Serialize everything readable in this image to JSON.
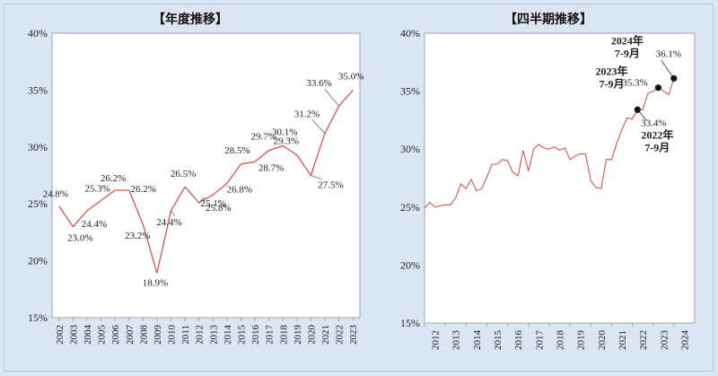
{
  "chart_data": [
    {
      "type": "line",
      "title": "【年度推移】",
      "xlabel": "",
      "ylabel": "",
      "ylim": [
        15,
        40
      ],
      "yticks": [
        "15%",
        "20%",
        "25%",
        "30%",
        "35%",
        "40%"
      ],
      "grid": false,
      "categories": [
        "2002",
        "2003",
        "2004",
        "2005",
        "2006",
        "2007",
        "2008",
        "2009",
        "2010",
        "2011",
        "2012",
        "2013",
        "2014",
        "2015",
        "2016",
        "2017",
        "2018",
        "2019",
        "2020",
        "2021",
        "2022",
        "2023"
      ],
      "series": [
        {
          "values": [
            24.8,
            23.0,
            24.4,
            25.3,
            26.2,
            26.2,
            23.2,
            18.9,
            24.4,
            26.5,
            25.1,
            25.8,
            26.8,
            28.5,
            28.7,
            29.7,
            30.1,
            29.3,
            27.5,
            31.2,
            33.6,
            35.0
          ],
          "color": "#d9534f"
        }
      ],
      "data_labels": [
        "24.8%",
        "23.0%",
        "24.4%",
        "25.3%",
        "26.2%",
        "26.2%",
        "23.2%",
        "18.9%",
        "24.4%",
        "26.5%",
        "25.1%",
        "25.8%",
        "26.8%",
        "28.5%",
        "28.7%",
        "29.7%",
        "30.1%",
        "29.3%",
        "27.5%",
        "31.2%",
        "33.6%",
        "35.0%"
      ]
    },
    {
      "type": "line",
      "title": "【四半期推移】",
      "xlabel": "",
      "ylabel": "",
      "ylim": [
        15,
        40
      ],
      "yticks": [
        "15%",
        "20%",
        "25%",
        "30%",
        "35%",
        "40%"
      ],
      "grid": false,
      "year_labels": [
        "2012",
        "2013",
        "2014",
        "2015",
        "2016",
        "2017",
        "2018",
        "2019",
        "2020",
        "2021",
        "2022",
        "2023",
        "2024"
      ],
      "x_start": 2012,
      "x_step": 0.25,
      "series": [
        {
          "values": [
            24.9,
            25.4,
            25.0,
            25.1,
            25.2,
            25.2,
            25.8,
            27.0,
            26.6,
            27.4,
            26.4,
            26.6,
            27.6,
            28.7,
            28.7,
            29.1,
            29.0,
            28.0,
            27.7,
            29.9,
            28.1,
            30.0,
            30.4,
            30.1,
            30.0,
            30.2,
            29.9,
            30.1,
            29.1,
            29.4,
            29.6,
            29.6,
            27.3,
            26.7,
            26.6,
            29.1,
            29.1,
            30.5,
            31.7,
            32.7,
            32.6,
            33.4,
            33.4,
            34.8,
            35.0,
            35.3,
            35.0,
            34.7,
            36.1
          ],
          "color": "#d9534f"
        }
      ],
      "highlights": [
        {
          "value": 33.4,
          "index": 41,
          "label": "33.4%",
          "period": "2022年\n7-9月"
        },
        {
          "value": 35.3,
          "index": 45,
          "label": "35.3%",
          "period": "2023年\n7-9月"
        },
        {
          "value": 36.1,
          "index": 48,
          "label": "36.1%",
          "period": "2024年\n7-9月"
        }
      ]
    }
  ]
}
